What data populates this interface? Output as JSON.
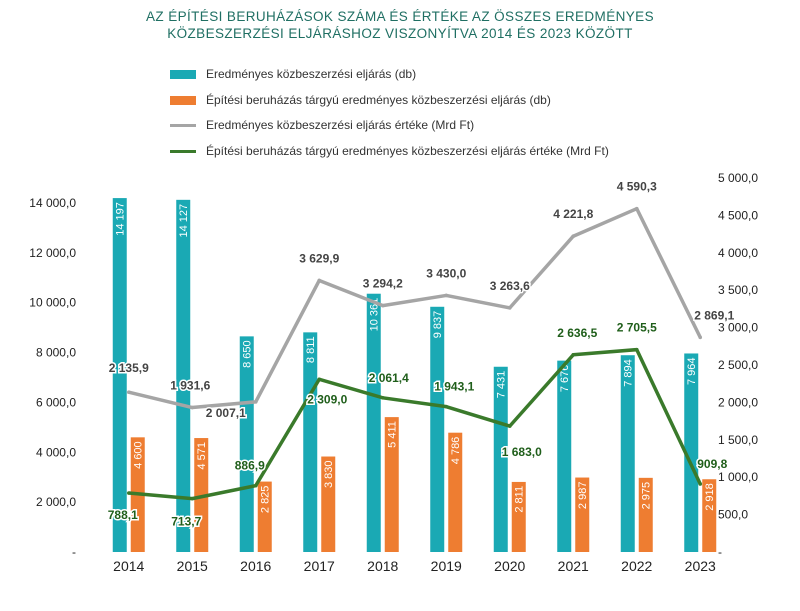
{
  "title_lines": [
    "AZ ÉPÍTÉSI BERUHÁZÁSOK SZÁMA ÉS ÉRTÉKE AZ ÖSSZES EREDMÉNYES",
    "KÖZBESZERZÉSI ELJÁRÁSHOZ VISZONYÍTVA 2014 ÉS 2023 KÖZÖTT"
  ],
  "colors": {
    "title": "#1f6f63",
    "teal": "#1aa9b4",
    "orange": "#ee7d31",
    "gray": "#a5a5a5",
    "green": "#3a7a2b"
  },
  "chart_data": {
    "type": "bar",
    "title": "AZ ÉPÍTÉSI BERUHÁZÁSOK SZÁMA ÉS ÉRTÉKE AZ ÖSSZES EREDMÉNYES KÖZBESZERZÉSI ELJÁRÁSHOZ VISZONYÍTVA 2014 ÉS 2023 KÖZÖTT",
    "categories": [
      "2014",
      "2015",
      "2016",
      "2017",
      "2018",
      "2019",
      "2020",
      "2021",
      "2022",
      "2023"
    ],
    "left_axis": {
      "ylim": [
        0,
        14000
      ],
      "ticks": [
        {
          "value": 0,
          "label": "-"
        },
        {
          "value": 2000,
          "label": "2 000,0"
        },
        {
          "value": 4000,
          "label": "4 000,0"
        },
        {
          "value": 6000,
          "label": "6 000,0"
        },
        {
          "value": 8000,
          "label": "8 000,0"
        },
        {
          "value": 10000,
          "label": "10 000,0"
        },
        {
          "value": 12000,
          "label": "12 000,0"
        },
        {
          "value": 14000,
          "label": "14 000,0"
        }
      ]
    },
    "right_axis": {
      "ylim": [
        0,
        5000
      ],
      "ticks": [
        {
          "value": 0,
          "label": "-"
        },
        {
          "value": 500,
          "label": "500,0"
        },
        {
          "value": 1000,
          "label": "1 000,0"
        },
        {
          "value": 1500,
          "label": "1 500,0"
        },
        {
          "value": 2000,
          "label": "2 000,0"
        },
        {
          "value": 2500,
          "label": "2 500,0"
        },
        {
          "value": 3000,
          "label": "3 000,0"
        },
        {
          "value": 3500,
          "label": "3 500,0"
        },
        {
          "value": 4000,
          "label": "4 000,0"
        },
        {
          "value": 4500,
          "label": "4 500,0"
        },
        {
          "value": 5000,
          "label": "5 000,0"
        }
      ]
    },
    "series": [
      {
        "name": "Eredményes közbeszerzési eljárás (db)",
        "type": "bar",
        "axis": "left",
        "color": "#1aa9b4",
        "values": [
          14197,
          14127,
          8650,
          8811,
          10361,
          9837,
          7431,
          7676,
          7894,
          7964
        ],
        "labels": [
          "14 197",
          "14 127",
          "8 650",
          "8 811",
          "10 361",
          "9 837",
          "7 431",
          "7 676",
          "7 894",
          "7 964"
        ]
      },
      {
        "name": "Építési beruházás tárgyú eredményes közbeszerzési eljárás (db)",
        "type": "bar",
        "axis": "left",
        "color": "#ee7d31",
        "values": [
          4600,
          4571,
          2825,
          3830,
          5411,
          4786,
          2811,
          2987,
          2975,
          2918
        ],
        "labels": [
          "4 600",
          "4 571",
          "2 825",
          "3 830",
          "5 411",
          "4 786",
          "2 811",
          "2 987",
          "2 975",
          "2 918"
        ]
      },
      {
        "name": "Eredményes közbeszerzési eljárás értéke (Mrd Ft)",
        "type": "line",
        "axis": "right",
        "color": "#a5a5a5",
        "values": [
          2135.9,
          1931.6,
          2007.1,
          3629.9,
          3294.2,
          3430.0,
          3263.6,
          4221.8,
          4590.3,
          2869.1
        ],
        "labels": [
          "2 135,9",
          "1 931,6",
          "2 007,1",
          "3 629,9",
          "3 294,2",
          "3 430,0",
          "3 263,6",
          "4 221,8",
          "4 590,3",
          "2 869,1"
        ]
      },
      {
        "name": "Építési beruházás tárgyú eredményes közbeszerzési eljárás értéke (Mrd Ft)",
        "type": "line",
        "axis": "right",
        "color": "#3a7a2b",
        "values": [
          788.1,
          713.7,
          886.9,
          2309.0,
          2061.4,
          1943.1,
          1683.0,
          2636.5,
          2705.5,
          909.8
        ],
        "labels": [
          "788,1",
          "713,7",
          "886,9",
          "2 309,0",
          "2 061,4",
          "1 943,1",
          "1 683,0",
          "2 636,5",
          "2 705,5",
          "909,8"
        ]
      }
    ],
    "legend_position": "top",
    "grid": false
  }
}
